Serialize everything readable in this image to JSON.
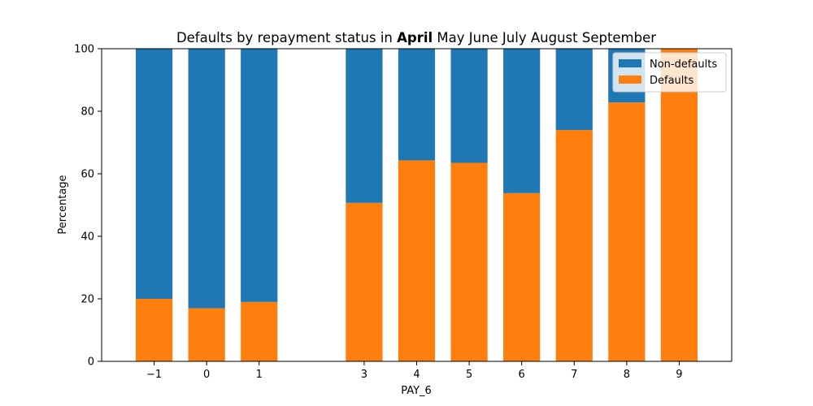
{
  "chart_data": {
    "type": "bar",
    "stacked": true,
    "title_prefix": "Defaults by repayment status in ",
    "title_highlight": "April",
    "title_rest": " May June July August September",
    "xlabel": "PAY_6",
    "ylabel": "Percentage",
    "ylim": [
      0,
      100
    ],
    "yticks": [
      0,
      20,
      40,
      60,
      80,
      100
    ],
    "xlim": [
      -2,
      10
    ],
    "categories": [
      -1,
      0,
      1,
      3,
      4,
      5,
      6,
      7,
      8,
      9
    ],
    "category_labels": [
      "−1",
      "0",
      "1",
      "3",
      "4",
      "5",
      "6",
      "7",
      "8",
      "9"
    ],
    "series": [
      {
        "name": "Defaults",
        "color": "#ff7f0e",
        "values": [
          20,
          17,
          19,
          50.7,
          64.3,
          63.5,
          53.8,
          74,
          82.8,
          100
        ]
      },
      {
        "name": "Non-defaults",
        "color": "#1f77b4",
        "values": [
          80,
          83,
          81,
          49.3,
          35.7,
          36.5,
          46.2,
          26,
          17.2,
          0
        ]
      }
    ],
    "legend_order": [
      "Non-defaults",
      "Defaults"
    ],
    "legend_position": "top-right",
    "grid": false
  }
}
